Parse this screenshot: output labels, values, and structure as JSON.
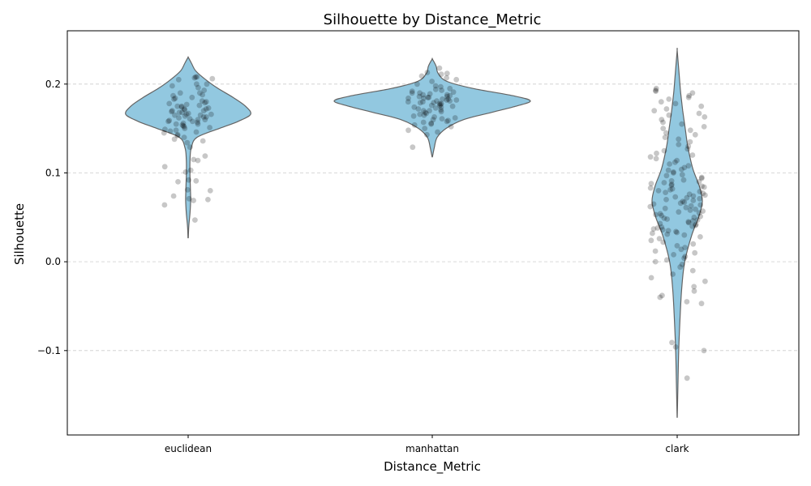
{
  "chart_data": {
    "type": "violin",
    "title": "Silhouette by Distance_Metric",
    "xlabel": "Distance_Metric",
    "ylabel": "Silhouette",
    "categories": [
      "euclidean",
      "manhattan",
      "clark"
    ],
    "ylim": [
      -0.195,
      0.26
    ],
    "yticks": [
      -0.1,
      0.0,
      0.1,
      0.2
    ],
    "ytick_labels": [
      "−0.1",
      "0.0",
      "0.1",
      "0.2"
    ],
    "grid": "y-dashed",
    "colors": {
      "violin_fill": "#92c8e0",
      "violin_edge": "#646464",
      "points": "#000000",
      "grid": "#cccccc"
    },
    "violins": [
      {
        "name": "euclidean",
        "y_min": 0.027,
        "y_max": 0.23,
        "density_profile": [
          [
            0.027,
            0.002
          ],
          [
            0.04,
            0.01
          ],
          [
            0.055,
            0.03
          ],
          [
            0.07,
            0.04
          ],
          [
            0.085,
            0.035
          ],
          [
            0.1,
            0.028
          ],
          [
            0.115,
            0.03
          ],
          [
            0.128,
            0.05
          ],
          [
            0.14,
            0.14
          ],
          [
            0.15,
            0.5
          ],
          [
            0.158,
            0.8
          ],
          [
            0.166,
            1.0
          ],
          [
            0.175,
            0.92
          ],
          [
            0.185,
            0.72
          ],
          [
            0.195,
            0.48
          ],
          [
            0.205,
            0.28
          ],
          [
            0.215,
            0.12
          ],
          [
            0.224,
            0.05
          ],
          [
            0.23,
            0.002
          ]
        ]
      },
      {
        "name": "manhattan",
        "y_min": 0.118,
        "y_max": 0.228,
        "density_profile": [
          [
            0.118,
            0.002
          ],
          [
            0.128,
            0.02
          ],
          [
            0.14,
            0.05
          ],
          [
            0.15,
            0.14
          ],
          [
            0.16,
            0.32
          ],
          [
            0.168,
            0.6
          ],
          [
            0.175,
            0.85
          ],
          [
            0.181,
            1.0
          ],
          [
            0.187,
            0.82
          ],
          [
            0.195,
            0.42
          ],
          [
            0.203,
            0.15
          ],
          [
            0.212,
            0.06
          ],
          [
            0.22,
            0.04
          ],
          [
            0.228,
            0.002
          ]
        ]
      },
      {
        "name": "clark",
        "y_min": -0.175,
        "y_max": 0.237,
        "density_profile": [
          [
            -0.175,
            0.002
          ],
          [
            -0.14,
            0.03
          ],
          [
            -0.1,
            0.06
          ],
          [
            -0.06,
            0.12
          ],
          [
            -0.03,
            0.18
          ],
          [
            0.0,
            0.3
          ],
          [
            0.03,
            0.58
          ],
          [
            0.05,
            0.85
          ],
          [
            0.068,
            1.0
          ],
          [
            0.085,
            0.88
          ],
          [
            0.105,
            0.62
          ],
          [
            0.13,
            0.42
          ],
          [
            0.15,
            0.32
          ],
          [
            0.17,
            0.22
          ],
          [
            0.19,
            0.14
          ],
          [
            0.21,
            0.08
          ],
          [
            0.237,
            0.002
          ]
        ]
      }
    ],
    "points": [
      {
        "name": "euclidean",
        "y": [
          0.208,
          0.205,
          0.207,
          0.206,
          0.208,
          0.2,
          0.198,
          0.2,
          0.196,
          0.193,
          0.19,
          0.19,
          0.188,
          0.187,
          0.185,
          0.184,
          0.183,
          0.181,
          0.18,
          0.179,
          0.178,
          0.177,
          0.176,
          0.175,
          0.175,
          0.174,
          0.173,
          0.172,
          0.172,
          0.171,
          0.17,
          0.17,
          0.169,
          0.168,
          0.168,
          0.167,
          0.166,
          0.166,
          0.165,
          0.165,
          0.164,
          0.163,
          0.163,
          0.162,
          0.161,
          0.16,
          0.16,
          0.159,
          0.158,
          0.158,
          0.157,
          0.156,
          0.155,
          0.155,
          0.154,
          0.153,
          0.152,
          0.151,
          0.15,
          0.149,
          0.148,
          0.147,
          0.146,
          0.145,
          0.143,
          0.142,
          0.14,
          0.138,
          0.136,
          0.134,
          0.129,
          0.119,
          0.115,
          0.114,
          0.107,
          0.103,
          0.101,
          0.092,
          0.091,
          0.09,
          0.081,
          0.08,
          0.074,
          0.071,
          0.07,
          0.069,
          0.064,
          0.047
        ]
      },
      {
        "name": "manhattan",
        "y": [
          0.218,
          0.213,
          0.212,
          0.211,
          0.209,
          0.207,
          0.205,
          0.203,
          0.2,
          0.198,
          0.197,
          0.195,
          0.194,
          0.193,
          0.192,
          0.191,
          0.19,
          0.19,
          0.189,
          0.188,
          0.188,
          0.187,
          0.186,
          0.186,
          0.185,
          0.185,
          0.184,
          0.184,
          0.183,
          0.183,
          0.182,
          0.182,
          0.181,
          0.181,
          0.18,
          0.18,
          0.179,
          0.179,
          0.178,
          0.178,
          0.177,
          0.176,
          0.176,
          0.175,
          0.174,
          0.174,
          0.173,
          0.172,
          0.171,
          0.17,
          0.17,
          0.169,
          0.168,
          0.167,
          0.166,
          0.165,
          0.164,
          0.163,
          0.162,
          0.161,
          0.16,
          0.159,
          0.158,
          0.157,
          0.156,
          0.155,
          0.154,
          0.152,
          0.15,
          0.148,
          0.146,
          0.143,
          0.129
        ]
      },
      {
        "name": "clark",
        "y": [
          0.195,
          0.193,
          0.192,
          0.19,
          0.187,
          0.185,
          0.183,
          0.18,
          0.178,
          0.175,
          0.172,
          0.17,
          0.167,
          0.165,
          0.163,
          0.16,
          0.157,
          0.155,
          0.152,
          0.15,
          0.148,
          0.145,
          0.143,
          0.14,
          0.138,
          0.135,
          0.132,
          0.13,
          0.127,
          0.125,
          0.122,
          0.12,
          0.118,
          0.116,
          0.114,
          0.112,
          0.11,
          0.108,
          0.106,
          0.104,
          0.103,
          0.101,
          0.1,
          0.098,
          0.097,
          0.095,
          0.094,
          0.092,
          0.091,
          0.09,
          0.089,
          0.088,
          0.087,
          0.086,
          0.085,
          0.084,
          0.083,
          0.082,
          0.081,
          0.08,
          0.079,
          0.078,
          0.077,
          0.076,
          0.075,
          0.074,
          0.073,
          0.072,
          0.071,
          0.07,
          0.069,
          0.068,
          0.067,
          0.066,
          0.065,
          0.064,
          0.063,
          0.062,
          0.061,
          0.06,
          0.059,
          0.058,
          0.057,
          0.056,
          0.055,
          0.054,
          0.053,
          0.052,
          0.051,
          0.05,
          0.049,
          0.048,
          0.047,
          0.046,
          0.045,
          0.044,
          0.043,
          0.042,
          0.041,
          0.04,
          0.039,
          0.038,
          0.037,
          0.036,
          0.035,
          0.034,
          0.033,
          0.032,
          0.031,
          0.03,
          0.028,
          0.026,
          0.024,
          0.022,
          0.02,
          0.018,
          0.016,
          0.014,
          0.012,
          0.01,
          0.008,
          0.006,
          0.004,
          0.002,
          0.0,
          -0.003,
          -0.006,
          -0.01,
          -0.014,
          -0.018,
          -0.022,
          -0.028,
          -0.033,
          -0.038,
          -0.04,
          -0.045,
          -0.047,
          -0.091,
          -0.096,
          -0.1,
          -0.131
        ]
      }
    ]
  }
}
